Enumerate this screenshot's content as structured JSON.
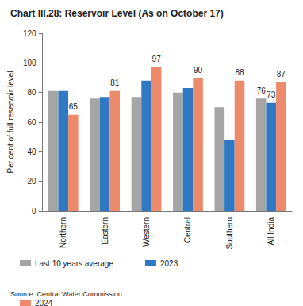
{
  "chart_data": {
    "type": "bar",
    "title": "Chart III.28: Reservoir Level (As on October 17)",
    "y_label": "Per cent of full reservoir level",
    "source": "Source: Central Water Commission.",
    "categories": [
      "Northern",
      "Eastern",
      "Western",
      "Central",
      "Southern",
      "All India"
    ],
    "series": [
      {
        "name": "Last 10 years average",
        "color": "#a5a5a5",
        "values": [
          81,
          76,
          77,
          80,
          70,
          76
        ],
        "value_labels": [
          null,
          null,
          null,
          null,
          null,
          "76"
        ]
      },
      {
        "name": "2023",
        "color": "#2f78c4",
        "values": [
          81,
          77,
          88,
          83,
          48,
          73
        ],
        "value_labels": [
          null,
          null,
          null,
          null,
          null,
          "73"
        ]
      },
      {
        "name": "2024",
        "color": "#ee8a6c",
        "values": [
          65,
          81,
          97,
          90,
          88,
          87
        ],
        "value_labels": [
          "65",
          "81",
          "97",
          "90",
          "88",
          "87"
        ]
      }
    ],
    "ylim": [
      0,
      120
    ],
    "yticks": [
      0,
      20,
      40,
      60,
      80,
      100,
      120
    ],
    "grid": false,
    "legend": "bottom"
  }
}
